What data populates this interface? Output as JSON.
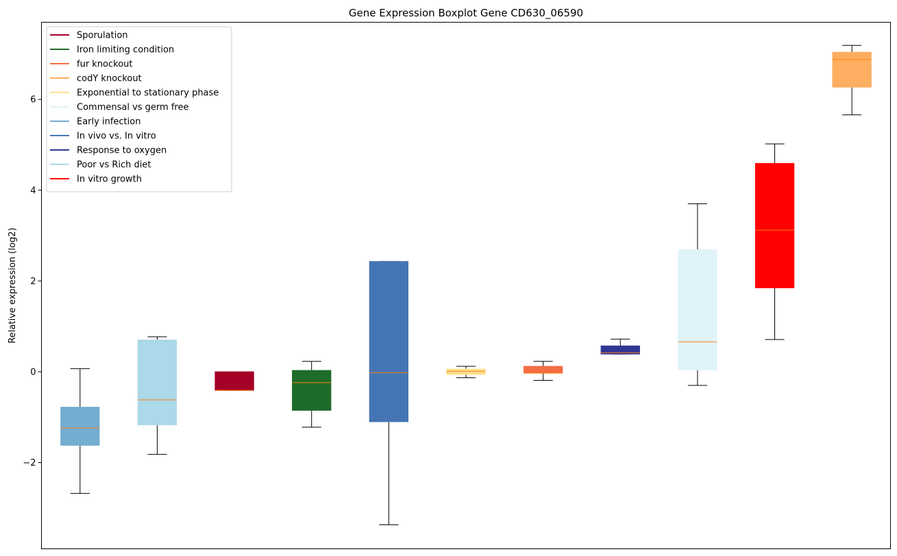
{
  "chart_data": {
    "type": "boxplot",
    "title": "Gene Expression Boxplot Gene CD630_06590",
    "xlabel": "",
    "ylabel": "Relative expression (log2)",
    "ylim": [
      -3.9,
      7.7
    ],
    "yticks": [
      -2,
      0,
      2,
      4,
      6
    ],
    "ytick_labels": [
      "−2",
      "0",
      "2",
      "4",
      "6"
    ],
    "grid": false,
    "legend_position": "top-left",
    "median_color": "#ff7f0e",
    "legend": [
      {
        "label": "Sporulation",
        "color": "#a50026"
      },
      {
        "label": "Iron limiting condition",
        "color": "#1e6b2a"
      },
      {
        "label": "fur knockout",
        "color": "#f46d43"
      },
      {
        "label": "codY knockout",
        "color": "#fdae61"
      },
      {
        "label": "Exponential to stationary phase",
        "color": "#fee090"
      },
      {
        "label": "Commensal vs germ free",
        "color": "#e0f3f8"
      },
      {
        "label": "Early infection",
        "color": "#74add1"
      },
      {
        "label": "In vivo vs. In vitro",
        "color": "#4575b4"
      },
      {
        "label": "Response to oxygen",
        "color": "#313695"
      },
      {
        "label": "Poor vs Rich diet",
        "color": "#abd9e9"
      },
      {
        "label": "In vitro growth",
        "color": "#ff0000"
      }
    ],
    "boxes": [
      {
        "group": "Early infection",
        "color": "#74add1",
        "whislo": -2.68,
        "q1": -1.62,
        "med": -1.24,
        "q3": -0.78,
        "whishi": 0.07
      },
      {
        "group": "Poor vs Rich diet",
        "color": "#abd9e9",
        "whislo": -1.82,
        "q1": -1.17,
        "med": -0.62,
        "q3": 0.7,
        "whishi": 0.77
      },
      {
        "group": "Sporulation",
        "color": "#a50026",
        "whislo": -0.41,
        "q1": -0.41,
        "med": -0.41,
        "q3": 0.0,
        "whishi": 0.0
      },
      {
        "group": "Iron limiting condition",
        "color": "#1e6b2a",
        "whislo": -1.22,
        "q1": -0.85,
        "med": -0.24,
        "q3": 0.03,
        "whishi": 0.23
      },
      {
        "group": "In vivo vs. In vitro",
        "color": "#4575b4",
        "whislo": -3.37,
        "q1": -1.1,
        "med": -0.02,
        "q3": 2.43,
        "whishi": 2.43
      },
      {
        "group": "Exponential to stationary phase",
        "color": "#fee090",
        "whislo": -0.13,
        "q1": -0.06,
        "med": 0.01,
        "q3": 0.06,
        "whishi": 0.12
      },
      {
        "group": "fur knockout",
        "color": "#f46d43",
        "whislo": -0.19,
        "q1": -0.03,
        "med": -0.03,
        "q3": 0.12,
        "whishi": 0.23
      },
      {
        "group": "Response to oxygen",
        "color": "#313695",
        "whislo": 0.39,
        "q1": 0.39,
        "med": 0.42,
        "q3": 0.57,
        "whishi": 0.72
      },
      {
        "group": "Commensal vs germ free",
        "color": "#e0f3f8",
        "whislo": -0.3,
        "q1": 0.04,
        "med": 0.66,
        "q3": 2.69,
        "whishi": 3.7
      },
      {
        "group": "In vitro growth",
        "color": "#ff0000",
        "whislo": 0.71,
        "q1": 1.85,
        "med": 3.12,
        "q3": 4.59,
        "whishi": 5.02
      },
      {
        "group": "codY knockout",
        "color": "#fdae61",
        "whislo": 5.66,
        "q1": 6.27,
        "med": 6.88,
        "q3": 7.04,
        "whishi": 7.19
      }
    ]
  }
}
